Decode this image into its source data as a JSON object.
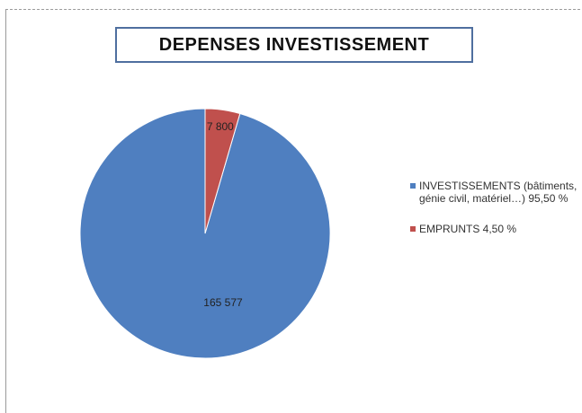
{
  "chart_data": {
    "type": "pie",
    "title": "DEPENSES INVESTISSEMENT",
    "slices": [
      {
        "label": "INVESTISSEMENTS (bâtiments, génie civil, matériel…) 95,50 %",
        "value": 165577,
        "data_label": "165 577",
        "color": "#4f7fc0"
      },
      {
        "label": "EMPRUNTS 4,50 %",
        "value": 7800,
        "data_label": "7 800",
        "color": "#c0504d"
      }
    ],
    "legend_placement": "right"
  }
}
